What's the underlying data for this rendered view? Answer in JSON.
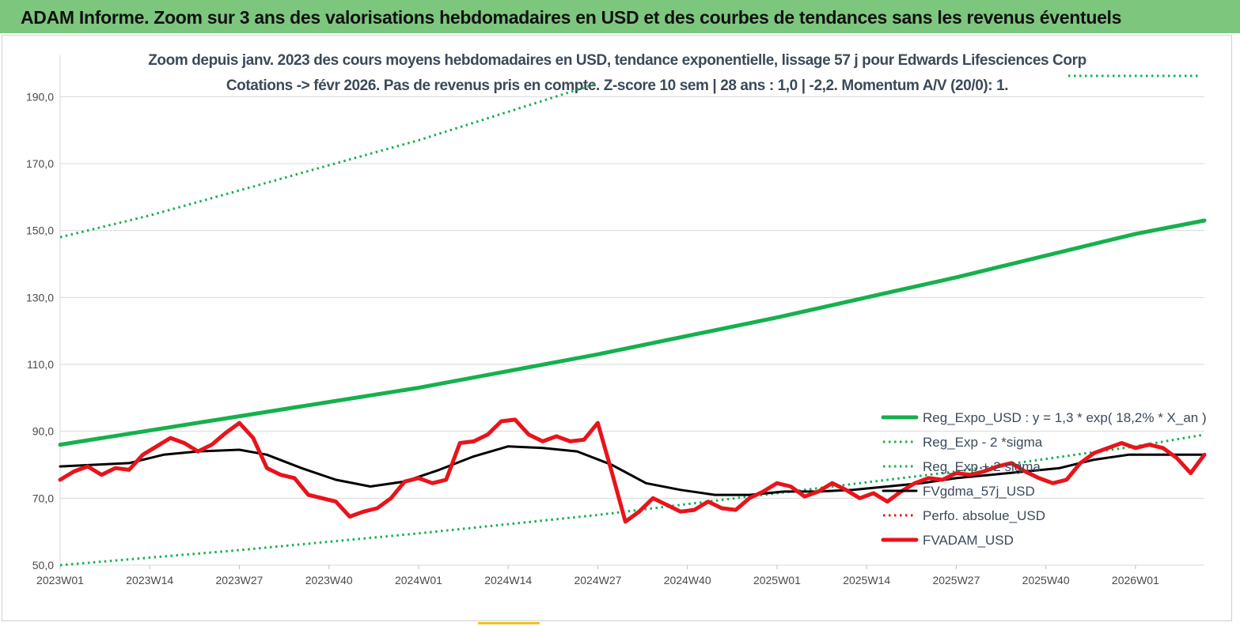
{
  "banner": {
    "title": "ADAM Informe. Zoom sur 3 ans des valorisations hebdomadaires en USD et des courbes de tendances sans les revenus éventuels"
  },
  "colors": {
    "banner_bg": "#7dc67e",
    "accent": "#f2c21b",
    "reg_expo": "#16b04e",
    "fvgdma": "#000000",
    "fvadam": "#e8141b"
  },
  "chart_data": {
    "type": "line",
    "title": "Zoom depuis janv. 2023 des cours moyens hebdomadaires en USD, tendance exponentielle, lissage 57 j pour Edwards Lifesciences Corp",
    "subtitle": "Cotations -> févr 2026.  Pas de revenus pris en compte. Z-score 10 sem  | 28 ans : 1,0 | -2,2. Momentum A/V (20/0): 1.",
    "xlabel": "",
    "ylabel": "",
    "ylim": [
      50,
      200
    ],
    "yticks": [
      "50,0",
      "70,0",
      "90,0",
      "110,0",
      "130,0",
      "150,0",
      "170,0",
      "190,0"
    ],
    "ytick_values": [
      50,
      70,
      90,
      110,
      130,
      150,
      170,
      190
    ],
    "xticks": [
      "2023W01",
      "2023W14",
      "2023W27",
      "2023W40",
      "2024W01",
      "2024W14",
      "2024W27",
      "2024W40",
      "2025W01",
      "2025W14",
      "2025W27",
      "2025W40",
      "2026W01"
    ],
    "xtick_weeks": [
      0,
      13,
      26,
      39,
      52,
      65,
      78,
      91,
      104,
      117,
      130,
      143,
      156
    ],
    "x_max_week": 166,
    "grid": true,
    "legend_position": "right",
    "series": [
      {
        "name": "Reg_Expo_USD : y = 1,3  * exp( 18,2% *  X_an )",
        "style": "solid-thick",
        "color": "#16b04e",
        "x": [
          0,
          26,
          52,
          78,
          104,
          130,
          156,
          166
        ],
        "values": [
          86.0,
          94.5,
          103.0,
          113.0,
          124.0,
          136.0,
          149.0,
          153.0
        ]
      },
      {
        "name": "Reg_Exp - 2 *sigma",
        "style": "dotted",
        "color": "#16b04e",
        "x": [
          0,
          26,
          52,
          78,
          104,
          130,
          156,
          166
        ],
        "values": [
          50.0,
          54.5,
          59.5,
          65.0,
          71.5,
          78.0,
          85.5,
          89.0
        ]
      },
      {
        "name": "Reg_Exp + 2 sigma",
        "style": "dotted",
        "color": "#16b04e",
        "x": [
          0,
          13,
          26,
          39,
          52,
          65,
          78
        ],
        "values": [
          148.0,
          154.5,
          162.0,
          169.5,
          177.0,
          185.5,
          194.0
        ]
      },
      {
        "name": "FVgdma_57j_USD",
        "style": "solid",
        "color": "#000000",
        "x": [
          0,
          5,
          10,
          15,
          20,
          26,
          30,
          35,
          40,
          45,
          50,
          55,
          60,
          65,
          70,
          75,
          80,
          85,
          90,
          95,
          100,
          105,
          110,
          115,
          120,
          125,
          130,
          135,
          140,
          145,
          150,
          155,
          160,
          166
        ],
        "values": [
          79.5,
          80.0,
          80.5,
          83.0,
          84.0,
          84.5,
          83.0,
          79.0,
          75.5,
          73.5,
          75.0,
          78.5,
          82.5,
          85.5,
          85.0,
          84.0,
          80.0,
          74.5,
          72.5,
          71.0,
          71.0,
          72.0,
          72.0,
          72.5,
          73.5,
          74.5,
          76.0,
          77.0,
          78.0,
          79.0,
          81.5,
          83.0,
          83.0,
          83.0
        ]
      },
      {
        "name": "Perfo. absolue_USD",
        "style": "dotted",
        "color": "#e8141b",
        "x": [],
        "values": []
      },
      {
        "name": "FVADAM_USD",
        "style": "solid-thick",
        "color": "#e8141b",
        "x": [
          0,
          2,
          4,
          6,
          8,
          10,
          12,
          14,
          16,
          18,
          20,
          22,
          24,
          26,
          28,
          30,
          32,
          34,
          36,
          38,
          40,
          42,
          44,
          46,
          48,
          50,
          52,
          54,
          56,
          58,
          60,
          62,
          64,
          66,
          68,
          70,
          72,
          74,
          76,
          78,
          80,
          82,
          84,
          86,
          88,
          90,
          92,
          94,
          96,
          98,
          100,
          102,
          104,
          106,
          108,
          110,
          112,
          114,
          116,
          118,
          120,
          122,
          124,
          126,
          128,
          130,
          132,
          134,
          136,
          138,
          140,
          142,
          144,
          146,
          148,
          150,
          152,
          154,
          156,
          158,
          160,
          162,
          164,
          166
        ],
        "values": [
          75.5,
          78.0,
          79.5,
          77.0,
          79.0,
          78.5,
          83.0,
          85.5,
          88.0,
          86.5,
          84.0,
          86.0,
          89.5,
          92.5,
          88.0,
          79.0,
          77.0,
          76.0,
          71.0,
          70.0,
          69.0,
          64.5,
          66.0,
          67.0,
          70.0,
          75.0,
          76.0,
          74.5,
          75.5,
          86.5,
          87.0,
          89.0,
          93.0,
          93.5,
          89.0,
          87.0,
          88.5,
          87.0,
          87.5,
          92.5,
          78.0,
          63.0,
          66.0,
          70.0,
          68.0,
          66.0,
          66.5,
          69.0,
          67.0,
          66.5,
          70.0,
          72.0,
          74.5,
          73.5,
          70.5,
          72.0,
          74.5,
          72.5,
          70.0,
          71.5,
          69.0,
          72.0,
          74.5,
          76.0,
          75.5,
          77.5,
          77.0,
          78.0,
          79.5,
          80.5,
          78.0,
          76.0,
          74.5,
          75.5,
          80.5,
          83.5,
          85.0,
          86.5,
          85.0,
          86.0,
          85.0,
          82.0,
          77.5,
          83.0
        ]
      }
    ]
  }
}
